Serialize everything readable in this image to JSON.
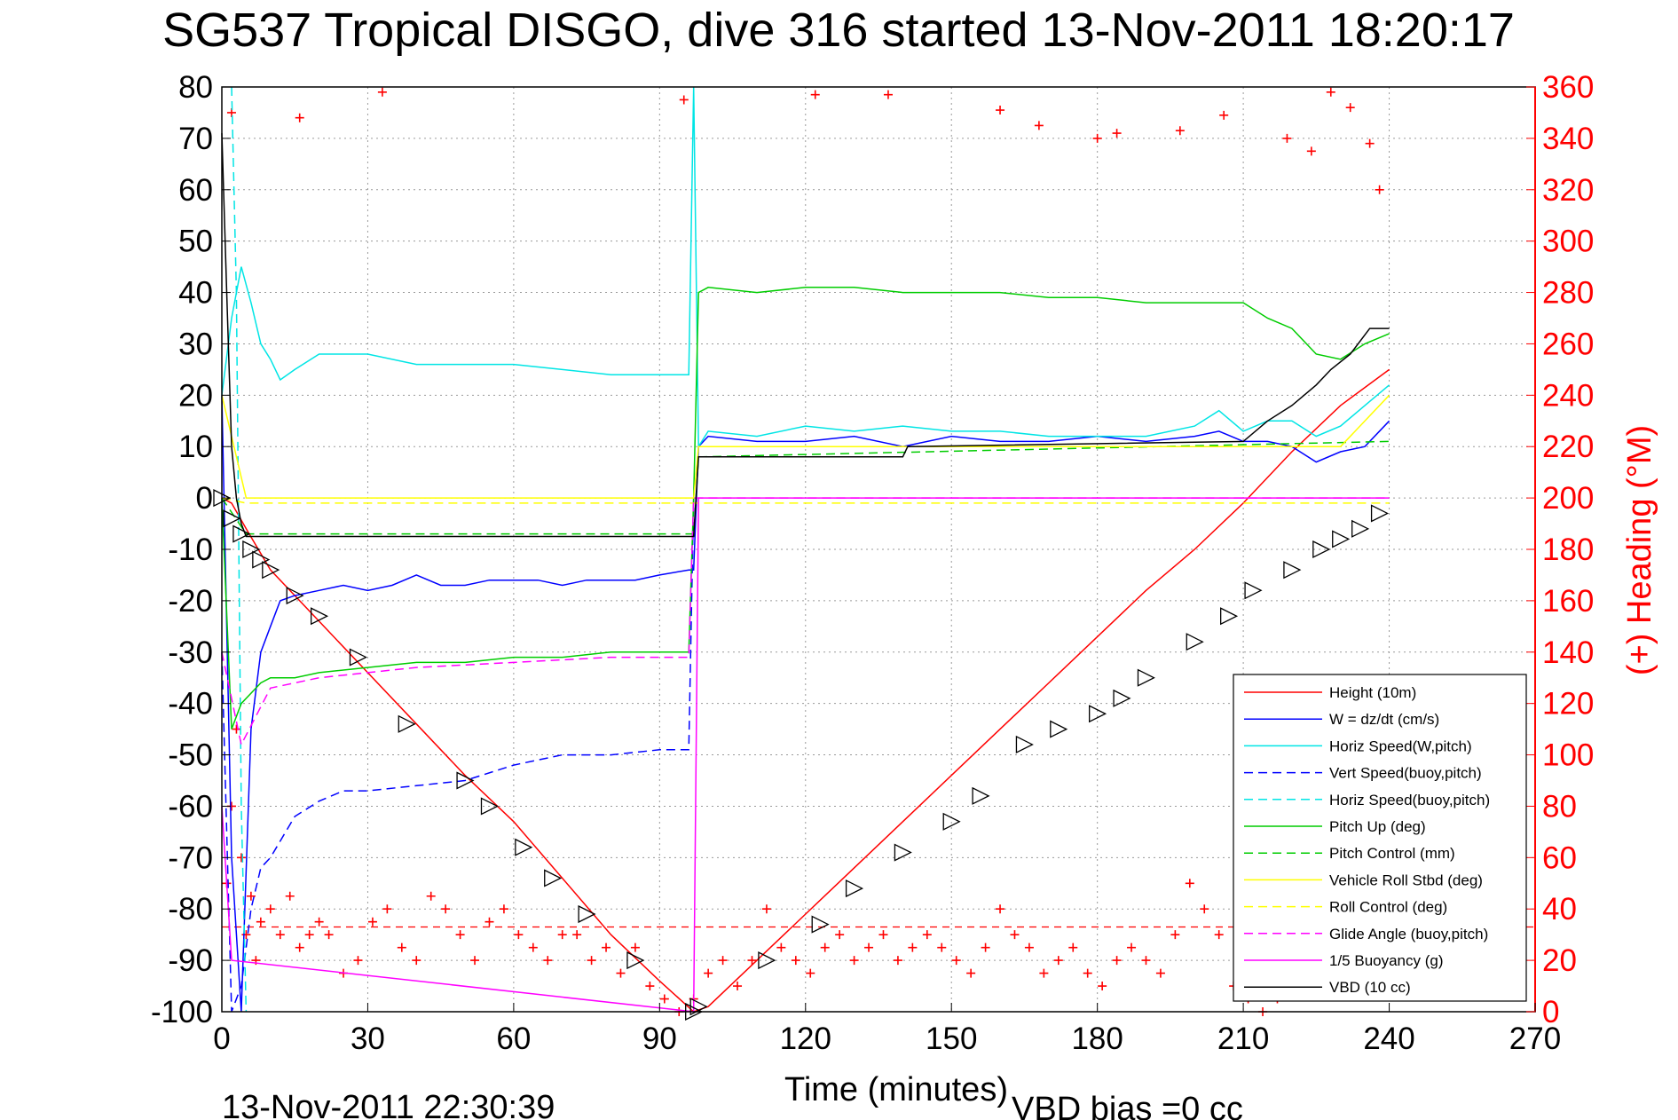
{
  "chart_data": {
    "type": "line",
    "title": "SG537 Tropical DISGO, dive 316 started 13-Nov-2011 18:20:17",
    "xlabel": "Time (minutes)",
    "ylabel_right": "(+) Heading (°M)",
    "xlim": [
      0,
      270
    ],
    "ylim": [
      -100,
      80
    ],
    "ylim_right": [
      0,
      360
    ],
    "x_ticks": [
      "0",
      "30",
      "60",
      "90",
      "120",
      "150",
      "180",
      "210",
      "240",
      "270"
    ],
    "y_ticks": [
      "80",
      "70",
      "60",
      "50",
      "40",
      "30",
      "20",
      "10",
      "0",
      "-10",
      "-20",
      "-30",
      "-40",
      "-50",
      "-60",
      "-70",
      "-80",
      "-90",
      "-100"
    ],
    "y_ticks_right": [
      "360",
      "340",
      "320",
      "300",
      "280",
      "260",
      "240",
      "220",
      "200",
      "180",
      "160",
      "140",
      "120",
      "100",
      "80",
      "60",
      "40",
      "20",
      "0"
    ],
    "grid": true,
    "legend_position": "bottom-right",
    "footer_left": "13-Nov-2011 22:30:39",
    "footer_right": "VBD bias =0 cc",
    "series": [
      {
        "name": "Height (10m)",
        "color": "#ff0000",
        "dash": "solid",
        "x": [
          0,
          2,
          5,
          10,
          20,
          30,
          40,
          50,
          60,
          70,
          80,
          90,
          97,
          100,
          110,
          120,
          130,
          140,
          150,
          160,
          170,
          180,
          190,
          200,
          210,
          220,
          230,
          240
        ],
        "y": [
          0,
          -1,
          -6,
          -14,
          -24,
          -34,
          -44,
          -54,
          -63,
          -74,
          -85,
          -94,
          -100,
          -99,
          -90,
          -81,
          -72,
          -63,
          -54,
          -45,
          -36,
          -27,
          -18,
          -10,
          -1,
          9,
          18,
          25
        ]
      },
      {
        "name": "W = dz/dt (cm/s)",
        "color": "#0000ff",
        "dash": "solid",
        "x": [
          0,
          2,
          4,
          6,
          8,
          10,
          12,
          15,
          20,
          25,
          30,
          35,
          40,
          45,
          50,
          55,
          60,
          65,
          70,
          75,
          80,
          85,
          90,
          96,
          97,
          98,
          100,
          110,
          120,
          130,
          140,
          150,
          160,
          170,
          180,
          190,
          200,
          205,
          210,
          215,
          220,
          225,
          230,
          235,
          240
        ],
        "y": [
          20,
          -70,
          -100,
          -45,
          -30,
          -25,
          -20,
          -19,
          -18,
          -17,
          -18,
          -17,
          -15,
          -17,
          -17,
          -16,
          -16,
          -16,
          -17,
          -16,
          -16,
          -16,
          -15,
          -14,
          -14,
          10,
          12,
          11,
          11,
          12,
          10,
          12,
          11,
          11,
          12,
          11,
          12,
          13,
          11,
          11,
          10,
          7,
          9,
          10,
          15
        ]
      },
      {
        "name": "Horiz Speed(W,pitch)",
        "color": "#00e5e5",
        "dash": "solid",
        "x": [
          0,
          2,
          4,
          6,
          8,
          10,
          12,
          15,
          20,
          25,
          30,
          40,
          50,
          60,
          70,
          80,
          90,
          96,
          97,
          98,
          100,
          110,
          120,
          130,
          140,
          150,
          160,
          170,
          180,
          190,
          200,
          205,
          210,
          215,
          220,
          225,
          230,
          235,
          240
        ],
        "y": [
          20,
          35,
          45,
          38,
          30,
          27,
          23,
          25,
          28,
          28,
          28,
          26,
          26,
          26,
          25,
          24,
          24,
          24,
          80,
          10,
          13,
          12,
          14,
          13,
          14,
          13,
          13,
          12,
          12,
          12,
          14,
          17,
          13,
          15,
          15,
          12,
          14,
          18,
          22
        ]
      },
      {
        "name": "Vert Speed(buoy,pitch)",
        "color": "#0000ff",
        "dash": "dashed",
        "x": [
          0,
          2,
          4,
          6,
          8,
          10,
          15,
          20,
          25,
          30,
          40,
          50,
          60,
          70,
          80,
          90,
          96,
          97
        ],
        "y": [
          -30,
          -100,
          -95,
          -80,
          -72,
          -70,
          -62,
          -59,
          -57,
          -57,
          -56,
          -55,
          -52,
          -50,
          -50,
          -49,
          -49,
          0
        ]
      },
      {
        "name": "Horiz Speed(buoy,pitch)",
        "color": "#00e5e5",
        "dash": "dashed",
        "x": [
          2,
          3,
          4,
          5
        ],
        "y": [
          80,
          40,
          -60,
          -100
        ]
      },
      {
        "name": "Pitch Up (deg)",
        "color": "#00cc00",
        "dash": "solid",
        "x": [
          0,
          2,
          4,
          6,
          8,
          10,
          15,
          20,
          30,
          40,
          50,
          60,
          70,
          80,
          90,
          96,
          97,
          98,
          100,
          110,
          120,
          130,
          140,
          150,
          160,
          170,
          180,
          190,
          200,
          210,
          215,
          220,
          225,
          230,
          235,
          240
        ],
        "y": [
          0,
          -45,
          -40,
          -38,
          -36,
          -35,
          -35,
          -34,
          -33,
          -32,
          -32,
          -31,
          -31,
          -30,
          -30,
          -30,
          0,
          40,
          41,
          40,
          41,
          41,
          40,
          40,
          40,
          39,
          39,
          38,
          38,
          38,
          35,
          33,
          28,
          27,
          30,
          32
        ]
      },
      {
        "name": "Pitch Control (mm)",
        "color": "#00cc00",
        "dash": "dashed",
        "x": [
          0,
          5,
          97,
          98,
          240
        ],
        "y": [
          0,
          -7,
          -7,
          8,
          11
        ]
      },
      {
        "name": "Vehicle Roll Stbd (deg)",
        "color": "#ffff00",
        "dash": "solid",
        "x": [
          0,
          5,
          10,
          15,
          20,
          30,
          40,
          50,
          60,
          70,
          80,
          90,
          97,
          98,
          110,
          120,
          130,
          140,
          150,
          160,
          170,
          180,
          190,
          200,
          210,
          220,
          230,
          240
        ],
        "y": [
          20,
          0,
          0,
          0,
          0,
          0,
          0,
          0,
          0,
          0,
          0,
          0,
          0,
          10,
          10,
          10,
          10,
          10,
          10,
          10,
          10,
          10,
          10,
          10,
          10,
          10,
          10,
          20
        ]
      },
      {
        "name": "Roll Control (deg)",
        "color": "#ffff00",
        "dash": "dashed",
        "x": [
          0,
          5,
          97,
          98,
          240
        ],
        "y": [
          0,
          -1,
          -1,
          -1,
          -1
        ]
      },
      {
        "name": "Glide Angle (buoy,pitch)",
        "color": "#ff00ff",
        "dash": "dashed",
        "x": [
          0,
          4,
          10,
          20,
          40,
          60,
          80,
          96,
          97,
          240
        ],
        "y": [
          -30,
          -48,
          -37,
          -35,
          -33,
          -32,
          -31,
          -31,
          0,
          0
        ]
      },
      {
        "name": "1/5 Buoyancy (g)",
        "color": "#ff00ff",
        "dash": "solid",
        "x": [
          0,
          2,
          97,
          98,
          240
        ],
        "y": [
          -60,
          -90,
          -100,
          0,
          0
        ]
      },
      {
        "name": "VBD (10 cc)",
        "color": "#000000",
        "dash": "solid",
        "x": [
          0,
          1,
          2,
          3,
          4,
          5,
          97,
          98,
          140,
          141,
          210,
          215,
          220,
          225,
          228,
          232,
          236,
          240
        ],
        "y": [
          71,
          40,
          10,
          0,
          -5,
          -7.5,
          -7.5,
          8,
          8,
          10,
          11,
          15,
          18,
          22,
          25,
          28,
          33,
          33
        ]
      }
    ],
    "heading": {
      "name": "(+) Heading",
      "color": "#ff0000",
      "marker": "+",
      "reference_deg": 33,
      "x": [
        1,
        2,
        3,
        4,
        5,
        6,
        7,
        8,
        10,
        12,
        14,
        16,
        18,
        20,
        22,
        25,
        28,
        31,
        34,
        37,
        40,
        43,
        46,
        49,
        52,
        55,
        58,
        61,
        64,
        67,
        70,
        73,
        76,
        79,
        82,
        85,
        88,
        91,
        94,
        97,
        100,
        103,
        106,
        109,
        112,
        115,
        118,
        121,
        124,
        127,
        130,
        133,
        136,
        139,
        142,
        145,
        148,
        151,
        154,
        157,
        160,
        163,
        166,
        169,
        172,
        175,
        178,
        181,
        184,
        187,
        190,
        193,
        196,
        199,
        202,
        205,
        208,
        211,
        214,
        217,
        220,
        223,
        226,
        229,
        232,
        235,
        238
      ],
      "y": [
        50,
        80,
        110,
        60,
        30,
        45,
        20,
        35,
        40,
        30,
        45,
        25,
        30,
        35,
        30,
        15,
        20,
        35,
        40,
        25,
        20,
        45,
        40,
        30,
        20,
        35,
        40,
        30,
        25,
        20,
        30,
        30,
        20,
        25,
        15,
        25,
        10,
        5,
        0,
        5,
        15,
        20,
        10,
        20,
        40,
        25,
        20,
        15,
        25,
        30,
        20,
        25,
        30,
        20,
        25,
        30,
        25,
        20,
        15,
        25,
        40,
        30,
        25,
        15,
        20,
        25,
        15,
        10,
        20,
        25,
        20,
        15,
        30,
        50,
        40,
        30,
        10,
        5,
        0,
        5,
        10,
        15,
        10,
        20,
        25,
        20,
        30
      ]
    },
    "heading_high": {
      "x": [
        2,
        16,
        33,
        95,
        122,
        137,
        160,
        168,
        180,
        184,
        197,
        206,
        219,
        224,
        228,
        232,
        236,
        238
      ],
      "y": [
        350,
        348,
        358,
        355,
        357,
        357,
        351,
        345,
        340,
        342,
        343,
        349,
        340,
        335,
        358,
        352,
        338,
        320
      ]
    },
    "markers": {
      "x": [
        0,
        2,
        4,
        6,
        8,
        10,
        15,
        20,
        28,
        38,
        50,
        55,
        62,
        68,
        75,
        85,
        97,
        98,
        112,
        123,
        130,
        140,
        150,
        156,
        165,
        172,
        180,
        185,
        190,
        200,
        207,
        212,
        220,
        226,
        230,
        234,
        238
      ],
      "y": [
        0,
        -4,
        -7,
        -10,
        -12,
        -14,
        -19,
        -23,
        -31,
        -44,
        -55,
        -60,
        -68,
        -74,
        -81,
        -90,
        -100,
        -99,
        -90,
        -83,
        -76,
        -69,
        -63,
        -58,
        -48,
        -45,
        -42,
        -39,
        -35,
        -28,
        -23,
        -18,
        -14,
        -10,
        -8,
        -6,
        -3
      ]
    }
  }
}
